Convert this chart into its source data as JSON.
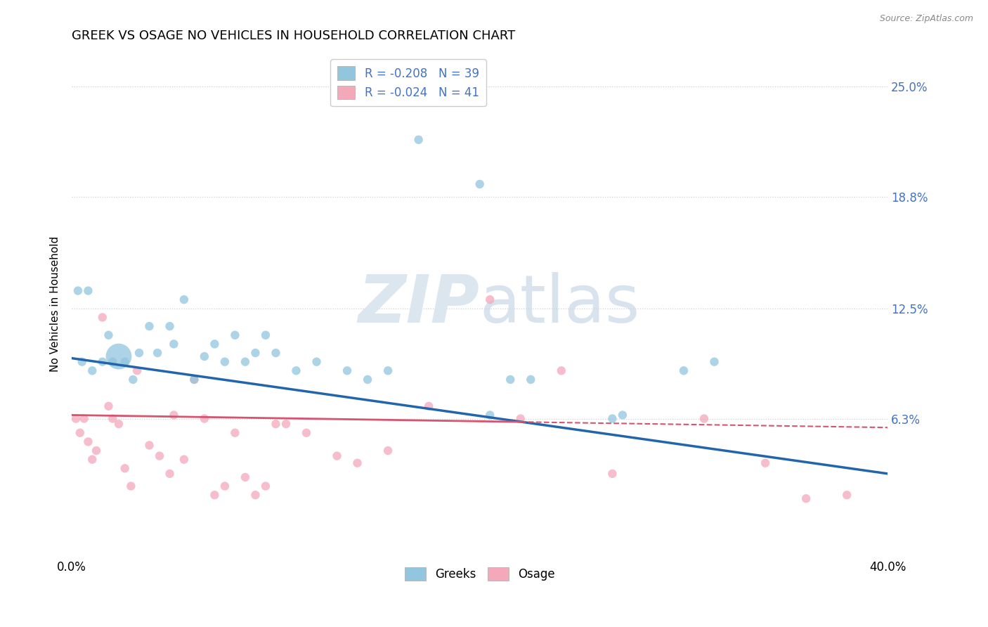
{
  "title": "GREEK VS OSAGE NO VEHICLES IN HOUSEHOLD CORRELATION CHART",
  "source": "Source: ZipAtlas.com",
  "xlabel": "",
  "ylabel": "No Vehicles in Household",
  "xlim": [
    0.0,
    40.0
  ],
  "ylim": [
    -1.5,
    27.0
  ],
  "ytick_positions": [
    0.0,
    6.3,
    12.5,
    18.8,
    25.0
  ],
  "ytick_labels_right": [
    "",
    "6.3%",
    "12.5%",
    "18.8%",
    "25.0%"
  ],
  "legend_entry1": "R = -0.208   N = 39",
  "legend_entry2": "R = -0.024   N = 41",
  "legend_label1": "Greeks",
  "legend_label2": "Osage",
  "blue_color": "#92c5de",
  "pink_color": "#f4a9bb",
  "blue_line_color": "#2166ac",
  "pink_line_color": "#d6546e",
  "blue_x": [
    0.3,
    0.5,
    0.8,
    1.0,
    1.5,
    1.8,
    2.0,
    2.3,
    2.6,
    3.0,
    3.3,
    3.8,
    4.2,
    4.8,
    5.0,
    5.5,
    6.0,
    6.5,
    7.0,
    7.5,
    8.0,
    8.5,
    9.0,
    9.5,
    10.0,
    11.0,
    12.0,
    13.5,
    14.5,
    15.5,
    17.0,
    21.5,
    22.5,
    30.0,
    31.5,
    20.0,
    20.5,
    26.5,
    27.0
  ],
  "blue_y": [
    13.5,
    9.5,
    13.5,
    9.0,
    9.5,
    11.0,
    9.5,
    9.8,
    9.5,
    8.5,
    10.0,
    11.5,
    10.0,
    11.5,
    10.5,
    13.0,
    8.5,
    9.8,
    10.5,
    9.5,
    11.0,
    9.5,
    10.0,
    11.0,
    10.0,
    9.0,
    9.5,
    9.0,
    8.5,
    9.0,
    22.0,
    8.5,
    8.5,
    9.0,
    9.5,
    19.5,
    6.5,
    6.3,
    6.5
  ],
  "blue_sizes": [
    80,
    80,
    80,
    80,
    80,
    80,
    80,
    700,
    80,
    80,
    80,
    80,
    80,
    80,
    80,
    80,
    80,
    80,
    80,
    80,
    80,
    80,
    80,
    80,
    80,
    80,
    80,
    80,
    80,
    80,
    80,
    80,
    80,
    80,
    80,
    80,
    80,
    80,
    80
  ],
  "pink_x": [
    0.2,
    0.4,
    0.6,
    0.8,
    1.0,
    1.2,
    1.5,
    1.8,
    2.0,
    2.3,
    2.6,
    2.9,
    3.2,
    3.8,
    4.3,
    4.8,
    5.5,
    6.5,
    7.5,
    8.5,
    9.5,
    10.5,
    11.5,
    13.0,
    14.0,
    15.5,
    17.5,
    20.5,
    22.0,
    24.0,
    26.5,
    31.0,
    34.0,
    36.0,
    38.0,
    5.0,
    6.0,
    7.0,
    8.0,
    9.0,
    10.0
  ],
  "pink_y": [
    6.3,
    5.5,
    6.3,
    5.0,
    4.0,
    4.5,
    12.0,
    7.0,
    6.3,
    6.0,
    3.5,
    2.5,
    9.0,
    4.8,
    4.2,
    3.2,
    4.0,
    6.3,
    2.5,
    3.0,
    2.5,
    6.0,
    5.5,
    4.2,
    3.8,
    4.5,
    7.0,
    13.0,
    6.3,
    9.0,
    3.2,
    6.3,
    3.8,
    1.8,
    2.0,
    6.5,
    8.5,
    2.0,
    5.5,
    2.0,
    6.0
  ],
  "pink_sizes": [
    80,
    80,
    80,
    80,
    80,
    80,
    80,
    80,
    80,
    80,
    80,
    80,
    80,
    80,
    80,
    80,
    80,
    80,
    80,
    80,
    80,
    80,
    80,
    80,
    80,
    80,
    80,
    80,
    80,
    80,
    80,
    80,
    80,
    80,
    80,
    80,
    80,
    80,
    80,
    80,
    80
  ],
  "blue_line_x0": 0.0,
  "blue_line_y0": 9.7,
  "blue_line_x1": 40.0,
  "blue_line_y1": 3.2,
  "pink_line_x0": 0.0,
  "pink_line_y0": 6.5,
  "pink_line_x1": 40.0,
  "pink_line_y1": 5.8,
  "pink_solid_end": 22.0,
  "watermark_zip": "ZIP",
  "watermark_atlas": "atlas",
  "background_color": "#ffffff",
  "grid_color": "#d0d0d0",
  "axis_label_color": "#4472c4",
  "title_fontsize": 13
}
